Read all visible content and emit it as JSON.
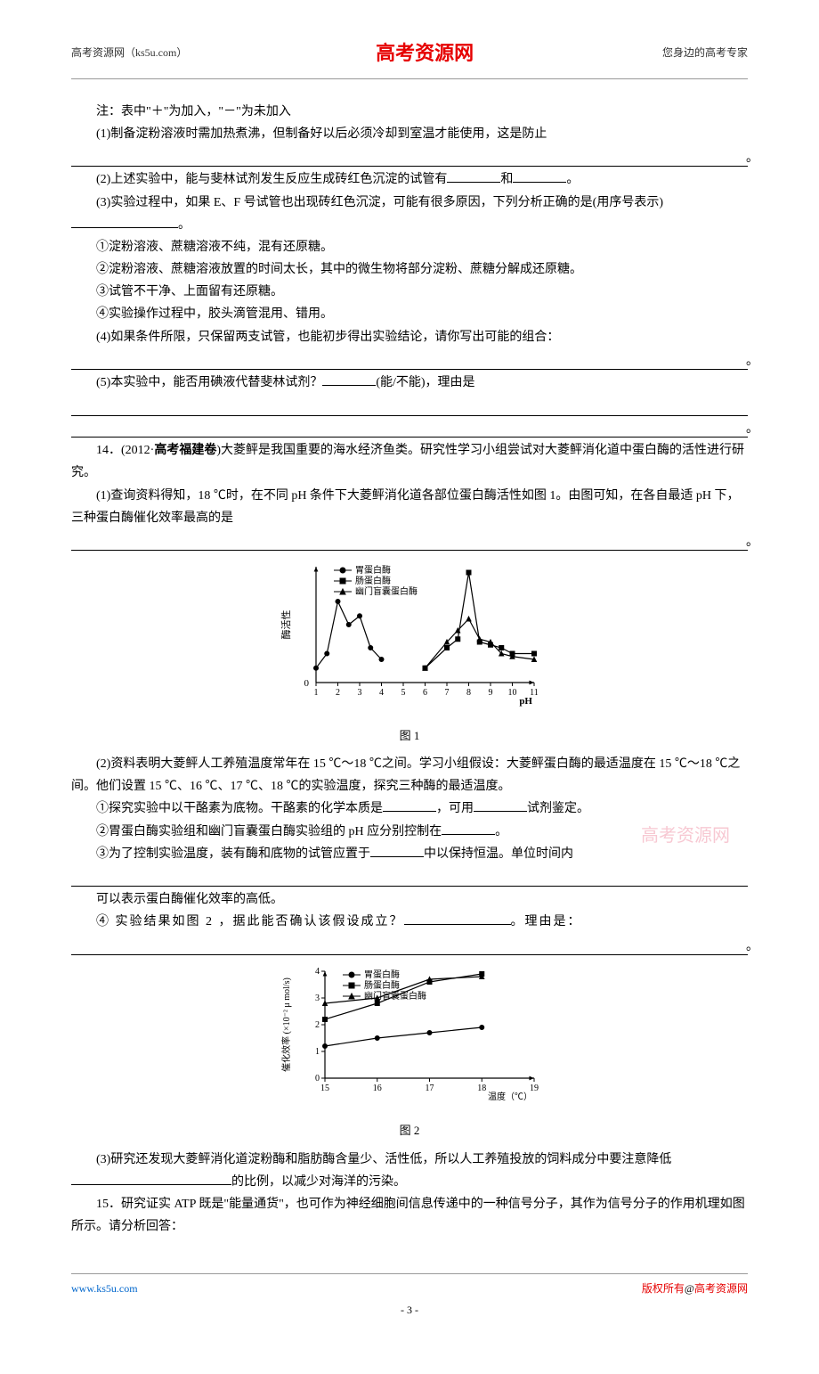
{
  "header": {
    "left": "高考资源网（ks5u.com）",
    "center": "高考资源网",
    "right": "您身边的高考专家"
  },
  "watermark": "高考资源网",
  "body": {
    "note": "注：表中\"＋\"为加入，\"－\"为未加入",
    "q1": "(1)制备淀粉溶液时需加热煮沸，但制备好以后必须冷却到室温才能使用，这是防止",
    "q2a": "(2)上述实验中，能与斐林试剂发生反应生成砖红色沉淀的试管有",
    "q2b": "和",
    "q2c": "。",
    "q3a": "(3)实验过程中，如果 E、F 号试管也出现砖红色沉淀，可能有很多原因，下列分析正确的是(用序号表示)",
    "q3b": "。",
    "opt1": "①淀粉溶液、蔗糖溶液不纯，混有还原糖。",
    "opt2": "②淀粉溶液、蔗糖溶液放置的时间太长，其中的微生物将部分淀粉、蔗糖分解成还原糖。",
    "opt3": "③试管不干净、上面留有还原糖。",
    "opt4": "④实验操作过程中，胶头滴管混用、错用。",
    "q4": "(4)如果条件所限，只保留两支试管，也能初步得出实验结论，请你写出可能的组合：",
    "q5a": "(5)本实验中，能否用碘液代替斐林试剂？",
    "q5b": "(能/不能)，理由是",
    "q14_head": "14．(2012·",
    "q14_bold": "高考福建卷",
    "q14_tail": ")大菱鲆是我国重要的海水经济鱼类。研究性学习小组尝试对大菱鲆消化道中蛋白酶的活性进行研究。",
    "q14_1a": "(1)查询资料得知，18 ℃时，在不同 pH 条件下大菱鲆消化道各部位蛋白酶活性如图 1。由图可知，在各自最适 pH 下，三种蛋白酶催化效率最高的是",
    "chart1": {
      "type": "line",
      "y_label": "酶活性",
      "x_label": "pH",
      "legend": [
        "胃蛋白酶",
        "肠蛋白酶",
        "幽门盲囊蛋白酶"
      ],
      "markers": [
        "circle",
        "square",
        "triangle"
      ],
      "x_ticks": [
        1,
        2,
        3,
        4,
        5,
        6,
        7,
        8,
        9,
        10,
        11
      ],
      "series": [
        {
          "name": "胃蛋白酶",
          "points": [
            [
              1,
              5
            ],
            [
              1.5,
              10
            ],
            [
              2,
              28
            ],
            [
              2.5,
              20
            ],
            [
              3,
              23
            ],
            [
              3.5,
              12
            ],
            [
              4,
              8
            ]
          ]
        },
        {
          "name": "肠蛋白酶",
          "points": [
            [
              6,
              5
            ],
            [
              7,
              12
            ],
            [
              7.5,
              15
            ],
            [
              8,
              38
            ],
            [
              8.5,
              14
            ],
            [
              9,
              13
            ],
            [
              9.5,
              12
            ],
            [
              10,
              10
            ],
            [
              11,
              10
            ]
          ]
        },
        {
          "name": "幽门盲囊蛋白酶",
          "points": [
            [
              6,
              5
            ],
            [
              7,
              14
            ],
            [
              7.5,
              18
            ],
            [
              8,
              22
            ],
            [
              8.5,
              15
            ],
            [
              9,
              14
            ],
            [
              9.5,
              10
            ],
            [
              10,
              9
            ],
            [
              11,
              8
            ]
          ]
        }
      ],
      "caption": "图 1",
      "axis_color": "#000000",
      "line_color": "#000000",
      "bg": "#ffffff"
    },
    "q14_2": "(2)资料表明大菱鲆人工养殖温度常年在 15 ℃～18 ℃之间。学习小组假设：大菱鲆蛋白酶的最适温度在 15 ℃～18 ℃之间。他们设置 15 ℃、16 ℃、17 ℃、18 ℃的实验温度，探究三种酶的最适温度。",
    "q14_2_1a": "①探究实验中以干酪素为底物。干酪素的化学本质是",
    "q14_2_1b": "，可用",
    "q14_2_1c": "试剂鉴定。",
    "q14_2_2a": "②胃蛋白酶实验组和幽门盲囊蛋白酶实验组的 pH 应分别控制在",
    "q14_2_2b": "。",
    "q14_2_3a": "③为了控制实验温度，装有酶和底物的试管应置于",
    "q14_2_3b": "中以保持恒温。单位时间内",
    "q14_2_3c": "可以表示蛋白酶催化效率的高低。",
    "q14_2_4a": "④ 实验结果如图 2 ，据此能否确认该假设成立？",
    "q14_2_4b": "。理由是：",
    "chart2": {
      "type": "line",
      "y_label": "催化效率 (×10⁻² μ mol/s)",
      "x_label": "温度（℃）",
      "legend": [
        "胃蛋白酶",
        "肠蛋白酶",
        "幽门盲囊蛋白酶"
      ],
      "markers": [
        "circle",
        "square",
        "triangle"
      ],
      "y_ticks": [
        0,
        1,
        2,
        3,
        4
      ],
      "x_ticks": [
        15,
        16,
        17,
        18,
        19
      ],
      "series": [
        {
          "name": "胃蛋白酶",
          "points": [
            [
              15,
              1.2
            ],
            [
              16,
              1.5
            ],
            [
              17,
              1.7
            ],
            [
              18,
              1.9
            ]
          ]
        },
        {
          "name": "肠蛋白酶",
          "points": [
            [
              15,
              2.2
            ],
            [
              16,
              2.8
            ],
            [
              17,
              3.6
            ],
            [
              18,
              3.9
            ]
          ]
        },
        {
          "name": "幽门盲囊蛋白酶",
          "points": [
            [
              15,
              2.8
            ],
            [
              16,
              3.0
            ],
            [
              17,
              3.7
            ],
            [
              18,
              3.8
            ]
          ]
        }
      ],
      "caption": "图 2",
      "axis_color": "#000000",
      "line_color": "#000000",
      "bg": "#ffffff"
    },
    "q14_3a": "(3)研究还发现大菱鲆消化道淀粉酶和脂肪酶含量少、活性低，所以人工养殖投放的饲料成分中要注意降低",
    "q14_3b": "的比例，以减少对海洋的污染。",
    "q15": "15．研究证实 ATP 既是\"能量通货\"，也可作为神经细胞间信息传递中的一种信号分子，其作为信号分子的作用机理如图所示。请分析回答："
  },
  "footer": {
    "left": "www.ks5u.com",
    "right_prefix": "版权所有",
    "right_at": "@",
    "right_suffix": "高考资源网",
    "page": "- 3 -"
  }
}
